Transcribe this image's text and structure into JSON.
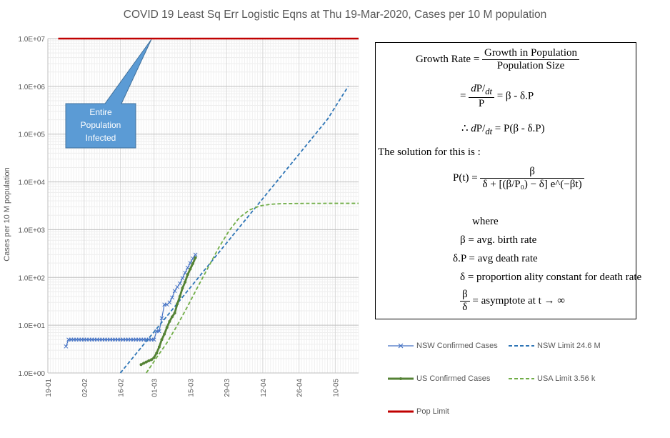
{
  "chart_data": {
    "type": "line",
    "title": "COVID 19 Least Sq Err Logistic Eqns at Thu 19-Mar-2020, Cases per 10 M population",
    "ylabel": "Cases per 10 M population",
    "xlabel": "",
    "yscale": "log",
    "ylim": [
      1,
      10000000
    ],
    "xlim_days": [
      0,
      120
    ],
    "x_ticks": [
      {
        "day": 0,
        "label": "19-01"
      },
      {
        "day": 14,
        "label": "02-02"
      },
      {
        "day": 28,
        "label": "16-02"
      },
      {
        "day": 41,
        "label": "01-03"
      },
      {
        "day": 55,
        "label": "15-03"
      },
      {
        "day": 69,
        "label": "29-03"
      },
      {
        "day": 83,
        "label": "12-04"
      },
      {
        "day": 97,
        "label": "26-04"
      },
      {
        "day": 111,
        "label": "10-05"
      }
    ],
    "y_ticks": [
      {
        "value": 1,
        "label": "1.0E+00"
      },
      {
        "value": 10,
        "label": "1.0E+01"
      },
      {
        "value": 100,
        "label": "1.0E+02"
      },
      {
        "value": 1000,
        "label": "1.0E+03"
      },
      {
        "value": 10000,
        "label": "1.0E+04"
      },
      {
        "value": 100000,
        "label": "1.0E+05"
      },
      {
        "value": 1000000,
        "label": "1.0E+06"
      },
      {
        "value": 10000000,
        "label": "1.0E+07"
      }
    ],
    "series": [
      {
        "name": "NSW Confirmed Cases",
        "color": "#4472C4",
        "style": "line-x",
        "days": [
          7,
          8,
          9,
          10,
          11,
          12,
          13,
          14,
          15,
          16,
          17,
          18,
          19,
          20,
          21,
          22,
          23,
          24,
          25,
          26,
          27,
          28,
          29,
          30,
          31,
          32,
          33,
          34,
          35,
          36,
          37,
          38,
          39,
          40,
          41,
          42,
          43,
          44,
          45,
          46,
          47,
          48,
          49,
          50,
          51,
          52,
          53,
          54,
          55,
          56,
          57
        ],
        "values": [
          3.6,
          5,
          5,
          5,
          5,
          5,
          5,
          5,
          5,
          5,
          5,
          5,
          5,
          5,
          5,
          5,
          5,
          5,
          5,
          5,
          5,
          5,
          5,
          5,
          5,
          5,
          5,
          5,
          5,
          5,
          5,
          5,
          5,
          5,
          5,
          7.5,
          7.5,
          14,
          27,
          27,
          30,
          38,
          52,
          63,
          75,
          97,
          125,
          160,
          200,
          250,
          300
        ]
      },
      {
        "name": "NSW Limit 24.6 M",
        "color": "#2E75B6",
        "style": "dash",
        "days": [
          28,
          38,
          48,
          58,
          68,
          78,
          88,
          98,
          108,
          116
        ],
        "values": [
          1,
          4.6,
          21,
          97,
          450,
          2080,
          9600,
          44300,
          205000,
          1000000
        ]
      },
      {
        "name": "US Confirmed Cases",
        "color": "#548235",
        "style": "line-dot",
        "days": [
          36,
          37,
          38,
          39,
          40,
          41,
          42,
          43,
          44,
          45,
          46,
          47,
          48,
          49,
          50,
          51,
          52,
          53,
          54,
          55,
          56,
          57
        ],
        "values": [
          1.5,
          1.6,
          1.7,
          1.8,
          1.9,
          2.1,
          2.6,
          3.5,
          5,
          6.5,
          9,
          12,
          15,
          18,
          28,
          40,
          60,
          80,
          115,
          150,
          195,
          260
        ]
      },
      {
        "name": "USA Limit 3.56 k",
        "color": "#70AD47",
        "style": "dash",
        "days": [
          38,
          42,
          46,
          50,
          54,
          58,
          62,
          66,
          70,
          74,
          78,
          82,
          86,
          90,
          100,
          110,
          120
        ],
        "values": [
          1,
          2.1,
          4.3,
          10,
          25,
          65,
          165,
          420,
          950,
          1800,
          2600,
          3150,
          3400,
          3500,
          3550,
          3560,
          3560
        ]
      },
      {
        "name": "Pop Limit",
        "color": "#C00000",
        "style": "solid",
        "days": [
          4,
          120
        ],
        "values": [
          10000000,
          10000000
        ]
      }
    ],
    "annotations": [
      {
        "text": "Entire Population Infected",
        "points_to": "Pop Limit"
      }
    ]
  },
  "callout": {
    "lines": [
      "Entire",
      "Population",
      "Infected"
    ]
  },
  "equations": {
    "growth_rate": "Growth Rate",
    "growth_num": "Growth in Population",
    "growth_den": "Population Size",
    "eq2_rhs": "= β - δ.P",
    "eq3_lhs": "∴",
    "eq3_rhs": "= P(β - δ.P)",
    "solution_text": "The solution for this is :",
    "pt": "P(t) =",
    "pt_num": "β",
    "pt_den": "δ + [(β/P₀) − δ] e^(−βt)",
    "where": "where",
    "def1": "β = avg. birth rate",
    "def2": "δ.P = avg death rate",
    "def3": "δ = proportion ality constant for death rate",
    "def4_num": "β",
    "def4_den": "δ",
    "def4_rhs": "= asymptote at t → ∞"
  }
}
